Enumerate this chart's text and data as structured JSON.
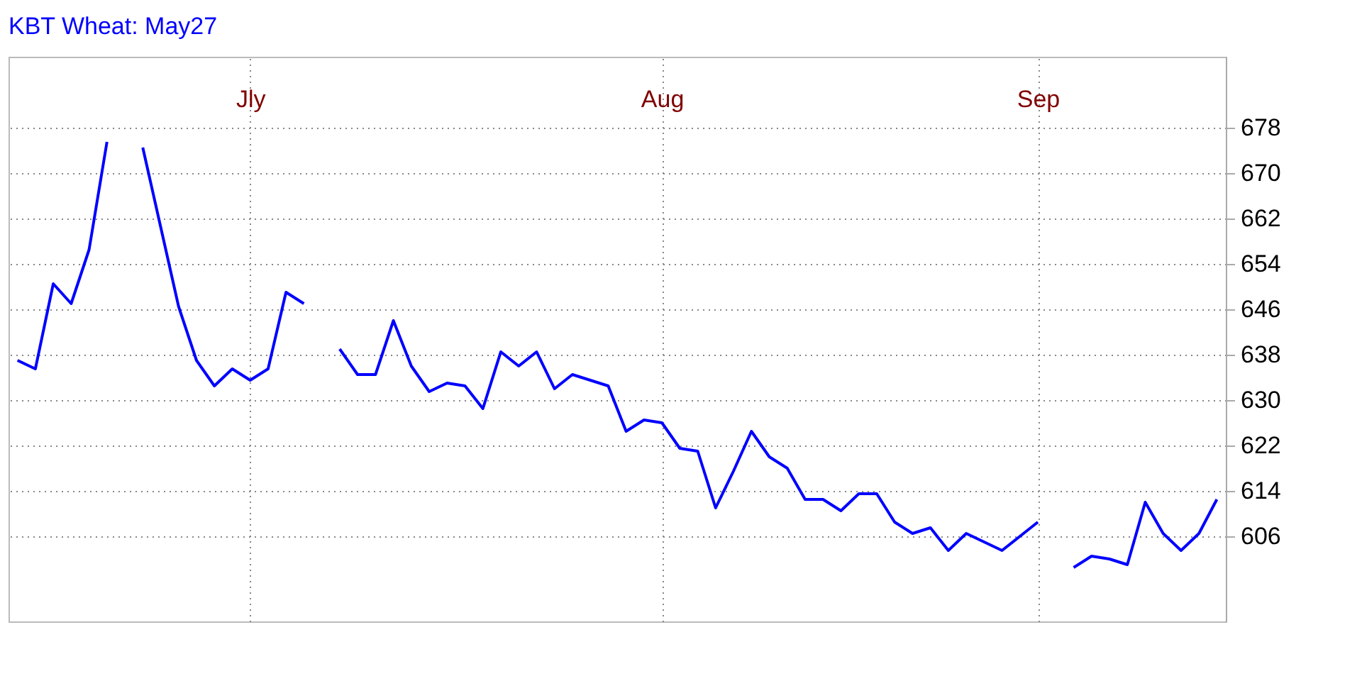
{
  "chart_data": {
    "type": "line",
    "title": "KBT Wheat: May27",
    "categories": [
      null,
      null,
      null,
      null,
      null,
      null,
      null,
      null,
      null,
      null,
      null,
      null,
      null,
      "Jly",
      null,
      null,
      null,
      null,
      null,
      null,
      null,
      null,
      null,
      null,
      null,
      null,
      null,
      null,
      null,
      null,
      null,
      null,
      null,
      null,
      null,
      null,
      "Aug",
      null,
      null,
      null,
      null,
      null,
      null,
      null,
      null,
      null,
      null,
      null,
      null,
      null,
      null,
      null,
      null,
      null,
      null,
      null,
      null,
      "Sep",
      null,
      null,
      null,
      null,
      null,
      null,
      null,
      null,
      null,
      null
    ],
    "series": [
      {
        "color": "#0000ff",
        "values": [
          637,
          635.5,
          650.5,
          647,
          656.5,
          675.5,
          null,
          674.5,
          660.5,
          646.5,
          637,
          632.5,
          635.5,
          633.5,
          635.5,
          649,
          647,
          null,
          639,
          634.5,
          634.5,
          644,
          636,
          631.5,
          633,
          632.5,
          628.5,
          638.5,
          636,
          638.5,
          632,
          634.5,
          633.5,
          632.5,
          624.5,
          626.5,
          626,
          621.5,
          621,
          611,
          617.5,
          624.5,
          620,
          618,
          612.5,
          612.5,
          610.5,
          613.5,
          613.5,
          608.5,
          606.5,
          607.5,
          603.5,
          606.5,
          605,
          603.5,
          606,
          608.5,
          null,
          600.5,
          602.5,
          602,
          601,
          612,
          606.5,
          603.5,
          606.5,
          612.5
        ]
      }
    ],
    "ylim": [
      591,
      690.5
    ],
    "yticks": [
      606,
      614,
      622,
      630,
      638,
      646,
      654,
      662,
      670,
      678
    ],
    "grid": true,
    "line_style": "solid"
  }
}
